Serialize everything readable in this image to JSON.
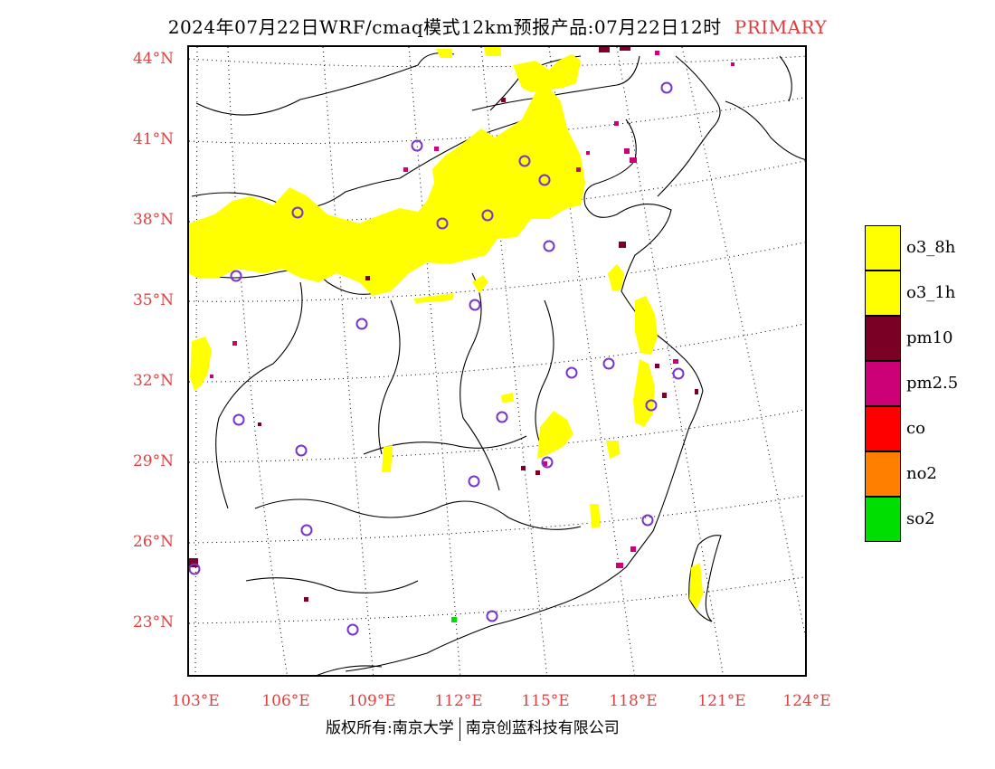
{
  "header": {
    "title": "2024年07月22日WRF/cmaq模式12km预报产品:07月22日12时",
    "primary_label": "PRIMARY",
    "primary_color": "#e23a3a"
  },
  "axes": {
    "lat_labels": [
      "44°N",
      "41°N",
      "38°N",
      "35°N",
      "32°N",
      "29°N",
      "26°N",
      "23°N"
    ],
    "lon_labels": [
      "103°E",
      "106°E",
      "109°E",
      "112°E",
      "115°E",
      "118°E",
      "121°E",
      "124°E"
    ],
    "label_color": "#e04040"
  },
  "legend": {
    "items": [
      {
        "label": "o3_8h",
        "color": "#ffff00"
      },
      {
        "label": "o3_1h",
        "color": "#ffff00"
      },
      {
        "label": "pm10",
        "color": "#7a0025"
      },
      {
        "label": "pm2.5",
        "color": "#cc0077"
      },
      {
        "label": "co",
        "color": "#ff0000"
      },
      {
        "label": "no2",
        "color": "#ff7f00"
      },
      {
        "label": "so2",
        "color": "#00dd00"
      }
    ]
  },
  "map": {
    "pollutant_colors": {
      "o3": "#ffff00",
      "pm10": "#7a0025",
      "pm25": "#cc0077",
      "so2": "#00dd00"
    },
    "station_marker_color": "#7a33cc",
    "grid_line_style": "dotted",
    "boundary_color": "#000000"
  },
  "footer": {
    "copyright_left": "版权所有:南京大学",
    "copyright_right": "南京创蓝科技有限公司"
  }
}
